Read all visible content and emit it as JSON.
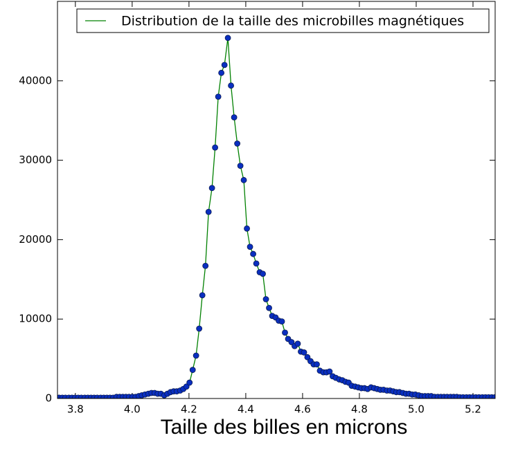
{
  "chart_data": {
    "type": "line",
    "xlabel": "Taille des billes en microns",
    "x": [
      3.743,
      3.754,
      3.765,
      3.777,
      3.788,
      3.799,
      3.81,
      3.821,
      3.833,
      3.844,
      3.855,
      3.866,
      3.877,
      3.889,
      3.9,
      3.911,
      3.922,
      3.933,
      3.945,
      3.956,
      3.967,
      3.978,
      3.989,
      4.001,
      4.012,
      4.023,
      4.034,
      4.045,
      4.057,
      4.068,
      4.079,
      4.09,
      4.101,
      4.113,
      4.124,
      4.135,
      4.146,
      4.157,
      4.169,
      4.18,
      4.191,
      4.202,
      4.213,
      4.225,
      4.236,
      4.247,
      4.258,
      4.269,
      4.281,
      4.292,
      4.303,
      4.314,
      4.325,
      4.337,
      4.348,
      4.359,
      4.37,
      4.381,
      4.393,
      4.404,
      4.415,
      4.426,
      4.437,
      4.449,
      4.46,
      4.471,
      4.482,
      4.493,
      4.505,
      4.516,
      4.527,
      4.538,
      4.549,
      4.561,
      4.572,
      4.583,
      4.594,
      4.605,
      4.617,
      4.628,
      4.639,
      4.65,
      4.661,
      4.673,
      4.684,
      4.695,
      4.706,
      4.717,
      4.729,
      4.74,
      4.751,
      4.762,
      4.773,
      4.785,
      4.796,
      4.807,
      4.818,
      4.829,
      4.841,
      4.852,
      4.863,
      4.874,
      4.885,
      4.897,
      4.908,
      4.919,
      4.93,
      4.941,
      4.953,
      4.964,
      4.975,
      4.986,
      4.997,
      5.009,
      5.02,
      5.031,
      5.042,
      5.053,
      5.065,
      5.076,
      5.087,
      5.098,
      5.109,
      5.121,
      5.132,
      5.143,
      5.154,
      5.165,
      5.177,
      5.188,
      5.199,
      5.21,
      5.221,
      5.233,
      5.244,
      5.255,
      5.266,
      5.277
    ],
    "series": [
      {
        "name": "Distribution de la taille des microbilles magnétiques",
        "color": "#008000",
        "marker_color": "#0a2fc0",
        "values": [
          100,
          100,
          100,
          100,
          100,
          100,
          100,
          100,
          100,
          100,
          100,
          100,
          100,
          100,
          100,
          100,
          100,
          100,
          200,
          200,
          200,
          200,
          200,
          200,
          200,
          300,
          400,
          500,
          600,
          700,
          700,
          600,
          600,
          400,
          600,
          800,
          900,
          900,
          1000,
          1200,
          1500,
          2000,
          3600,
          5400,
          8800,
          13000,
          16700,
          23500,
          26500,
          31600,
          38000,
          41000,
          42000,
          45400,
          39400,
          35400,
          32100,
          29300,
          27500,
          21400,
          19100,
          18200,
          17000,
          15900,
          15700,
          12500,
          11400,
          10400,
          10200,
          9800,
          9700,
          8300,
          7500,
          7100,
          6600,
          6900,
          5900,
          5800,
          5200,
          4700,
          4300,
          4300,
          3500,
          3300,
          3300,
          3400,
          2800,
          2600,
          2400,
          2300,
          2100,
          2000,
          1600,
          1500,
          1400,
          1300,
          1300,
          1200,
          1400,
          1300,
          1200,
          1100,
          1100,
          1000,
          1000,
          900,
          800,
          800,
          700,
          600,
          600,
          500,
          500,
          400,
          300,
          300,
          300,
          300,
          200,
          200,
          200,
          200,
          200,
          200,
          200,
          200,
          150,
          150,
          150,
          150,
          150,
          150,
          150,
          150,
          150,
          150,
          150,
          150
        ]
      }
    ],
    "xlim": [
      3.737,
      5.278
    ],
    "ylim": [
      0,
      50000
    ],
    "xticks": [
      3.8,
      {
        "value": 4,
        "label": "4.0"
      },
      4.2,
      4.4,
      4.6,
      4.8,
      {
        "value": 5,
        "label": "5.0"
      },
      5.2
    ],
    "yticks": [
      0,
      10000,
      20000,
      30000,
      40000
    ],
    "legend": "upper right"
  }
}
